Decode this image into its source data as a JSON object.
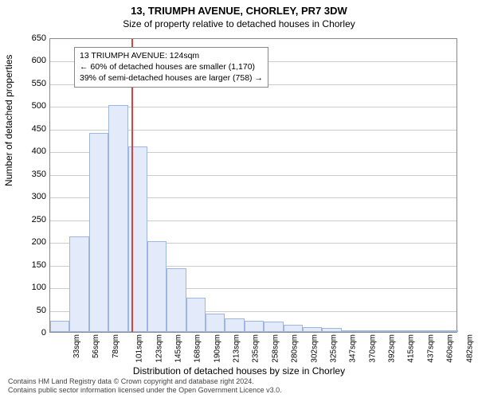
{
  "title_main": "13, TRIUMPH AVENUE, CHORLEY, PR7 3DW",
  "title_sub": "Size of property relative to detached houses in Chorley",
  "ylabel": "Number of detached properties",
  "xlabel": "Distribution of detached houses by size in Chorley",
  "info_box": {
    "line1": "13 TRIUMPH AVENUE: 124sqm",
    "line2": "← 60% of detached houses are smaller (1,170)",
    "line3": "39% of semi-detached houses are larger (758) →"
  },
  "footer_line1": "Contains HM Land Registry data © Crown copyright and database right 2024.",
  "footer_line2": "Contains public sector information licensed under the Open Government Licence v3.0.",
  "chart": {
    "type": "histogram",
    "ylim": [
      0,
      650
    ],
    "ytick_step": 50,
    "xtick_step_sqm": 22.5,
    "xlim_sqm": [
      33,
      490
    ],
    "xtick_labels": [
      "33sqm",
      "56sqm",
      "78sqm",
      "101sqm",
      "123sqm",
      "145sqm",
      "168sqm",
      "190sqm",
      "213sqm",
      "235sqm",
      "258sqm",
      "280sqm",
      "302sqm",
      "325sqm",
      "347sqm",
      "370sqm",
      "392sqm",
      "415sqm",
      "437sqm",
      "460sqm",
      "482sqm"
    ],
    "marker_sqm": 124,
    "marker_color": "#d44444",
    "bar_fill": "#e3ebfa",
    "bar_border": "#9fb6e0",
    "grid_color": "#cccccc",
    "background_color": "#ffffff",
    "values": [
      25,
      210,
      440,
      500,
      410,
      200,
      140,
      75,
      40,
      30,
      24,
      22,
      15,
      10,
      8,
      4,
      4,
      2,
      2,
      1,
      1
    ]
  }
}
